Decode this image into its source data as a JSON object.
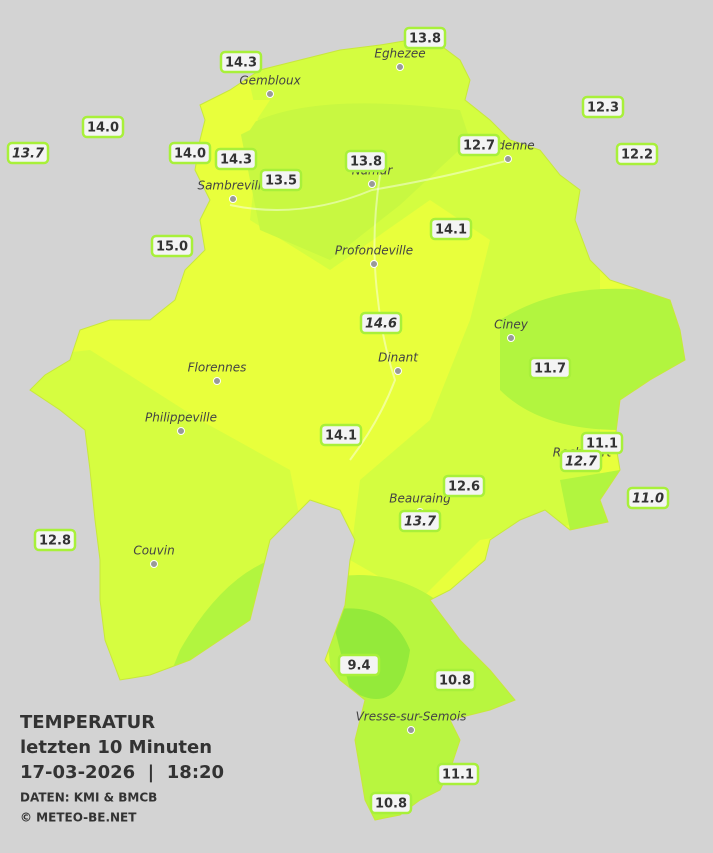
{
  "stations": [
    {
      "label": "13.8",
      "italic": false
    },
    {
      "label": "14.3",
      "italic": false
    },
    {
      "label": "12.3",
      "italic": false
    },
    {
      "label": "14.0",
      "italic": false
    },
    {
      "label": "13.7",
      "italic": true
    },
    {
      "label": "14.0",
      "italic": false
    },
    {
      "label": "14.3",
      "italic": false
    },
    {
      "label": "13.8",
      "italic": false
    },
    {
      "label": "12.7",
      "italic": false
    },
    {
      "label": "12.2",
      "italic": false
    },
    {
      "label": "13.5",
      "italic": false
    },
    {
      "label": "15.0",
      "italic": false
    },
    {
      "label": "14.1",
      "italic": false
    },
    {
      "label": "14.6",
      "italic": true
    },
    {
      "label": "11.7",
      "italic": false
    },
    {
      "label": "14.1",
      "italic": false
    },
    {
      "label": "11.1",
      "italic": false
    },
    {
      "label": "12.7",
      "italic": true
    },
    {
      "label": "12.6",
      "italic": false
    },
    {
      "label": "11.0",
      "italic": true
    },
    {
      "label": "13.7",
      "italic": true
    },
    {
      "label": "12.8",
      "italic": false
    },
    {
      "label": "9.4",
      "italic": false
    },
    {
      "label": "10.8",
      "italic": false
    },
    {
      "label": "11.1",
      "italic": false
    },
    {
      "label": "10.8",
      "italic": false
    }
  ],
  "cities": [
    "Gembloux",
    "Eghezee",
    "Andenne",
    "Namur",
    "Sambreville",
    "Profondeville",
    "Ciney",
    "Florennes",
    "Dinant",
    "Philippeville",
    "Rochefort",
    "Beauraing",
    "Couvin",
    "Vresse-sur-Semois"
  ],
  "legend": {
    "title": "TEMPERATUR",
    "period": "letzten 10 Minuten",
    "datetime": "17-03-2026  |  18:20",
    "source": "DATEN: KMI & BMCB",
    "copyright": "© METEO-BE.NET"
  }
}
